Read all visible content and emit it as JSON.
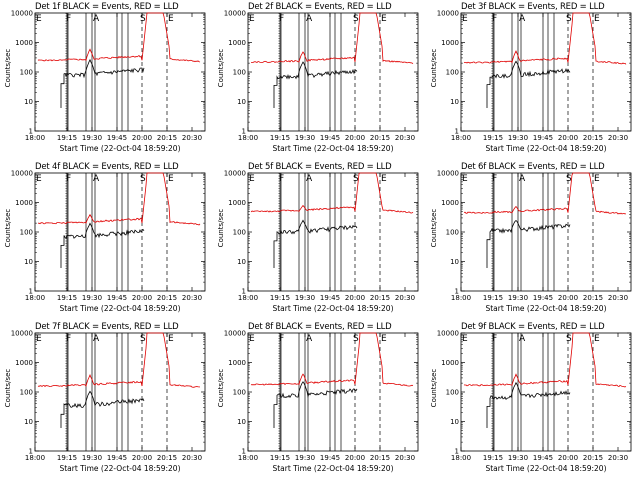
{
  "chart_data": {
    "type": "line",
    "grid": false,
    "x_ticks": [
      "18:00",
      "19:15",
      "19:30",
      "19:45",
      "20:00",
      "20:15",
      "20:30"
    ],
    "y_ticks": [
      "1",
      "10",
      "100",
      "1000",
      "10000"
    ],
    "y_scale": "log",
    "ylim": [
      1,
      10000
    ],
    "xlabel": "Start Time (22-Oct-04 18:59:20)",
    "ylabel": "Counts/sec",
    "marker_letters": [
      "E",
      "F",
      "A",
      "S",
      "E"
    ],
    "colors": {
      "events": "#000000",
      "lld": "#e00000"
    },
    "panels": [
      {
        "title": "Det 1f BLACK = Events, RED = LLD",
        "lld_base": 250,
        "events_base": 80,
        "lld_peak": 600,
        "events_peak": 260
      },
      {
        "title": "Det 2f BLACK = Events, RED = LLD",
        "lld_base": 220,
        "events_base": 70,
        "lld_peak": 500,
        "events_peak": 230
      },
      {
        "title": "Det 3f BLACK = Events, RED = LLD",
        "lld_base": 210,
        "events_base": 75,
        "lld_peak": 520,
        "events_peak": 240
      },
      {
        "title": "Det 4f BLACK = Events, RED = LLD",
        "lld_base": 200,
        "events_base": 70,
        "lld_peak": 400,
        "events_peak": 200
      },
      {
        "title": "Det 5f BLACK = Events, RED = LLD",
        "lld_base": 500,
        "events_base": 100,
        "lld_peak": 800,
        "events_peak": 250
      },
      {
        "title": "Det 6f BLACK = Events, RED = LLD",
        "lld_base": 450,
        "events_base": 110,
        "lld_peak": 750,
        "events_peak": 260
      },
      {
        "title": "Det 7f BLACK = Events, RED = LLD",
        "lld_base": 160,
        "events_base": 35,
        "lld_peak": 380,
        "events_peak": 110
      },
      {
        "title": "Det 8f BLACK = Events, RED = LLD",
        "lld_base": 180,
        "events_base": 75,
        "lld_peak": 420,
        "events_peak": 230
      },
      {
        "title": "Det 9f BLACK = Events, RED = LLD",
        "lld_base": 170,
        "events_base": 65,
        "lld_peak": 400,
        "events_peak": 210
      }
    ]
  }
}
